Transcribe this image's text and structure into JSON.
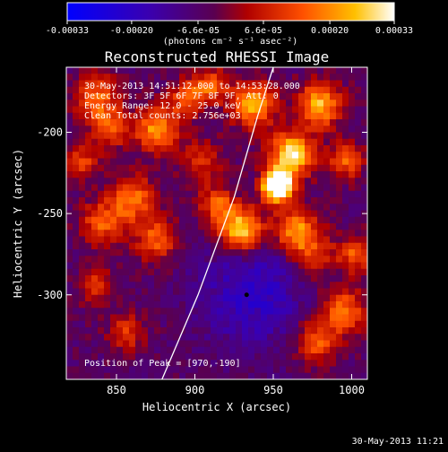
{
  "colorbar": {
    "min": -0.00033,
    "max": 0.00033,
    "tick_labels": [
      "-0.00033",
      "-0.00020",
      "-6.6e-05",
      "6.6e-05",
      "0.00020",
      "0.00033"
    ],
    "tick_values": [
      -0.00033,
      -0.0002,
      -6.6e-05,
      6.6e-05,
      0.0002,
      0.00033
    ],
    "units_label": "(photons cm⁻² s⁻¹ asec⁻²)"
  },
  "chart_data": {
    "type": "heatmap",
    "title": "Reconstructed RHESSI Image",
    "xlabel": "Heliocentric X (arcsec)",
    "ylabel": "Heliocentric Y (arcsec)",
    "xlim": [
      818,
      1010
    ],
    "ylim": [
      -352,
      -160
    ],
    "x_ticks": [
      850,
      900,
      950,
      1000
    ],
    "y_ticks": [
      -200,
      -250,
      -300
    ],
    "x_tick_labels": [
      "850",
      "900",
      "950",
      "1000"
    ],
    "y_tick_labels": [
      "-200",
      "-250",
      "-300"
    ],
    "annotations": [
      "30-May-2013 14:51:12.000 to 14:53:28.000",
      "Detectors: 3F 5F 6F 7F 8F 9F, Att: 0",
      "Energy Range: 12.0 - 25.0 keV",
      "Clean     Total counts: 2.756e+03"
    ],
    "peak_label": "Position of Peak = [970,-190]",
    "peak_position": [
      970,
      -190
    ],
    "marked_point": [
      933,
      -300
    ],
    "limb_curve": [
      [
        879,
        -352
      ],
      [
        902,
        -300
      ],
      [
        925,
        -240
      ],
      [
        940,
        -190
      ],
      [
        950,
        -160
      ]
    ],
    "grid": false
  },
  "footer": {
    "timestamp": "30-May-2013 11:21"
  }
}
